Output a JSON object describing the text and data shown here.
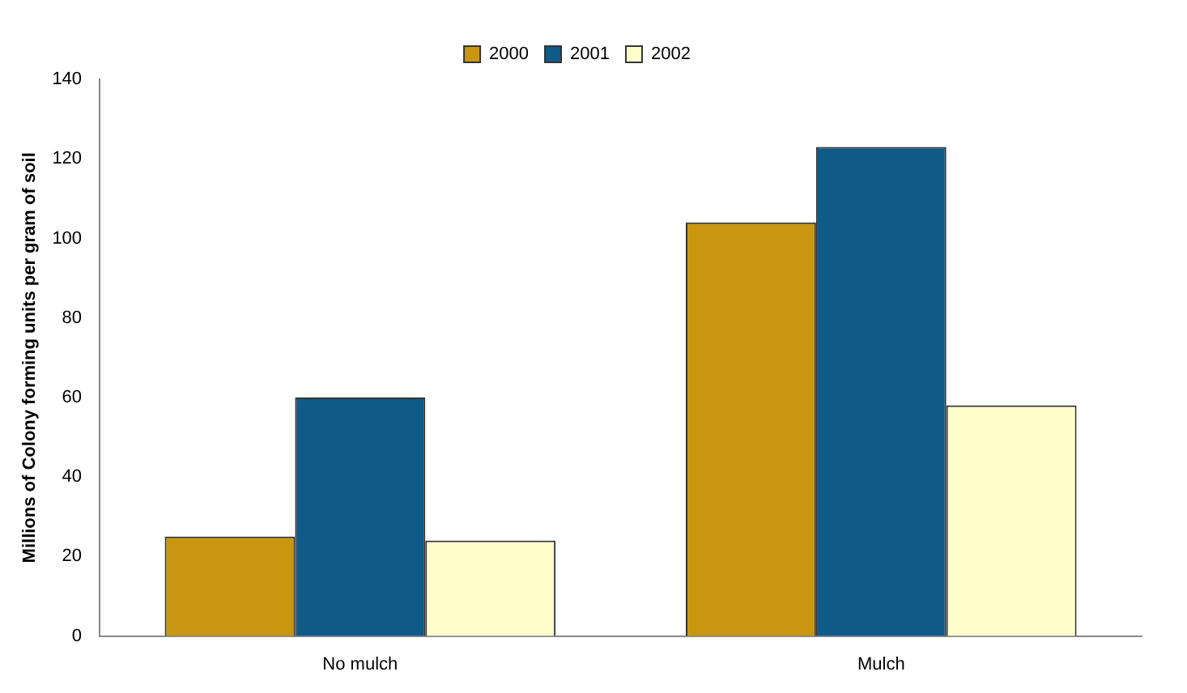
{
  "chart_data": {
    "type": "bar",
    "ylabel": "Millions of Colony forming units per gram of soil",
    "categories": [
      "No mulch",
      "Mulch"
    ],
    "series": [
      {
        "name": "2000",
        "color": "#c8960f",
        "values": [
          25,
          104
        ]
      },
      {
        "name": "2001",
        "color": "#0f5a87",
        "values": [
          60,
          123
        ]
      },
      {
        "name": "2002",
        "color": "#ffffcc",
        "values": [
          24,
          58
        ]
      }
    ],
    "ylim": [
      0,
      140
    ],
    "yticks": [
      0,
      20,
      40,
      60,
      80,
      100,
      120,
      140
    ],
    "grid": false,
    "legend": "top"
  }
}
